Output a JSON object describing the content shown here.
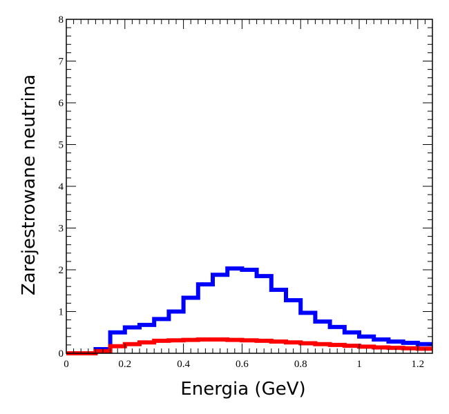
{
  "chart_data": {
    "type": "step-histogram",
    "title": "",
    "xlabel": "Energia (GeV)",
    "ylabel": "Zarejestrowane neutrina",
    "xlim": [
      0,
      1.25
    ],
    "ylim": [
      0,
      8
    ],
    "xticks": [
      0,
      0.2,
      0.4,
      0.6,
      0.8,
      1.0,
      1.2
    ],
    "xtick_labels": [
      "0",
      "0.2",
      "0.4",
      "0.6",
      "0.8",
      "1",
      "1.2"
    ],
    "yticks": [
      0,
      1,
      2,
      3,
      4,
      5,
      6,
      7,
      8
    ],
    "ytick_labels": [
      "0",
      "1",
      "2",
      "3",
      "4",
      "5",
      "6",
      "7",
      "8"
    ],
    "bin_edges": [
      0,
      0.05,
      0.1,
      0.15,
      0.2,
      0.25,
      0.3,
      0.35,
      0.4,
      0.45,
      0.5,
      0.55,
      0.6,
      0.65,
      0.7,
      0.75,
      0.8,
      0.85,
      0.9,
      0.95,
      1.0,
      1.05,
      1.1,
      1.15,
      1.2,
      1.25
    ],
    "series": [
      {
        "name": "blue",
        "color": "#0000ff",
        "values": [
          0.0,
          0.0,
          0.1,
          0.5,
          0.62,
          0.68,
          0.82,
          1.0,
          1.33,
          1.65,
          1.88,
          2.03,
          2.0,
          1.85,
          1.52,
          1.27,
          0.97,
          0.76,
          0.63,
          0.5,
          0.4,
          0.33,
          0.28,
          0.25,
          0.22
        ]
      },
      {
        "name": "red",
        "color": "#ff0000",
        "values": [
          0.0,
          0.0,
          0.05,
          0.17,
          0.22,
          0.26,
          0.3,
          0.31,
          0.32,
          0.33,
          0.33,
          0.32,
          0.31,
          0.3,
          0.28,
          0.26,
          0.24,
          0.22,
          0.2,
          0.18,
          0.16,
          0.14,
          0.13,
          0.12,
          0.11
        ]
      }
    ]
  }
}
